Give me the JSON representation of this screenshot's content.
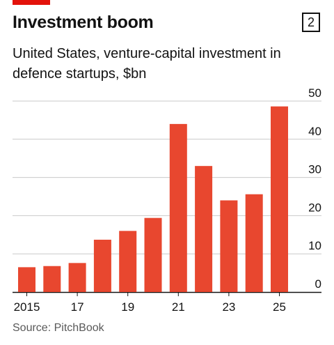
{
  "header": {
    "title": "Investment boom",
    "badge": "2",
    "subtitle": "United States, venture-capital investment in defence startups, $bn"
  },
  "source": "Source: PitchBook",
  "colors": {
    "accent": "#e3120b",
    "bar": "#e8472f",
    "grid": "#c9c9c9",
    "axis": "#121212"
  },
  "chart_data": {
    "type": "bar",
    "x": [
      2015,
      2016,
      2017,
      2018,
      2019,
      2020,
      2021,
      2022,
      2023,
      2024,
      2025
    ],
    "values": [
      6.5,
      6.8,
      7.6,
      13.7,
      16,
      19.4,
      44,
      33,
      24,
      25.6,
      48.6
    ],
    "xtick_labels": [
      "2015",
      "",
      "17",
      "",
      "19",
      "",
      "21",
      "",
      "23",
      "",
      "25"
    ],
    "yticks": [
      0,
      10,
      20,
      30,
      40,
      50
    ],
    "ylim": [
      0,
      50
    ],
    "grid": true,
    "yaxis_side": "right"
  }
}
